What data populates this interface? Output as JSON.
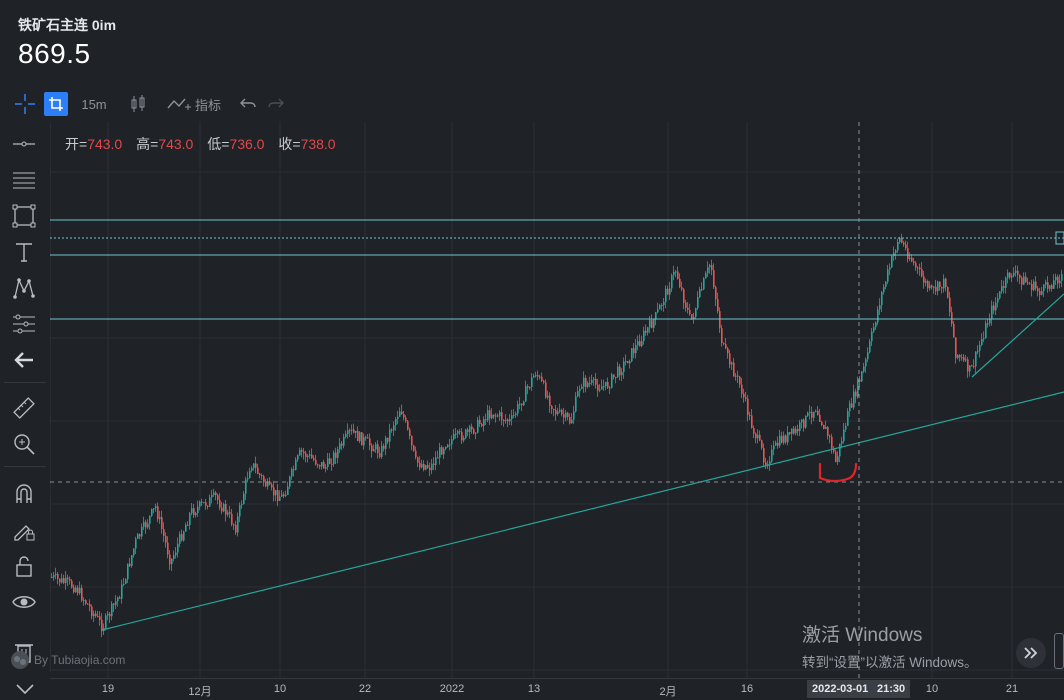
{
  "header": {
    "title": "铁矿石主连 0im",
    "price": "869.5"
  },
  "toolbar": {
    "interval": "15m",
    "indicator_label": "指标"
  },
  "ohlc": {
    "open_label": "开=",
    "open": "743.0",
    "high_label": "高=",
    "high": "743.0",
    "low_label": "低=",
    "low": "736.0",
    "close_label": "收=",
    "close": "738.0"
  },
  "left_tools": [
    "crosshair-icon",
    "horizontal-line-icon",
    "parallel-lines-icon",
    "rectangle-icon",
    "text-icon",
    "pattern-icon",
    "measure-lines-icon",
    "arrow-left-icon",
    "ruler-icon",
    "zoom-in-icon",
    "magnet-icon",
    "lock-draw-icon",
    "unlock-icon",
    "eye-icon",
    "trash-icon"
  ],
  "xaxis": {
    "ticks": [
      "19",
      "12月",
      "10",
      "22",
      "2022",
      "13",
      "2月",
      "16",
      "10",
      "21"
    ],
    "crosshair_date": "2022-03-01",
    "crosshair_time": "21:30"
  },
  "watermark": "By Tubiaojia.com",
  "activation": {
    "line1": "激活 Windows",
    "line2": "转到“设置”以激活 Windows。"
  },
  "colors": {
    "up": "#26a69a",
    "down": "#ef5350",
    "accent": "#2d7ff9",
    "hline": "#6ec6d4",
    "trend": "#26a69a"
  }
}
